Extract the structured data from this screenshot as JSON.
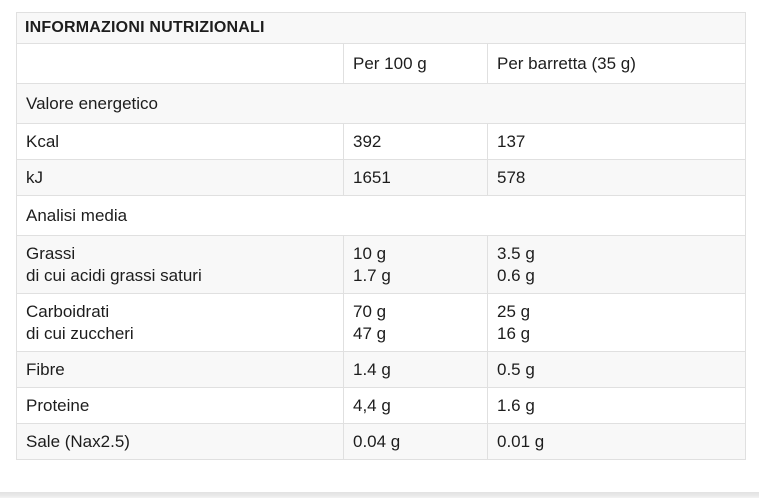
{
  "colors": {
    "stripe": "#f8f8f8",
    "row_white": "#ffffff",
    "border": "#e0e0e0",
    "text": "#1d1d1d",
    "bottom_edge": "#e9e9e9"
  },
  "table": {
    "title": "INFORMAZIONI NUTRIZIONALI",
    "col_headers": [
      "Per 100 g",
      "Per barretta (35 g)"
    ],
    "rows": [
      {
        "type": "section",
        "label": "Valore energetico"
      },
      {
        "type": "data",
        "label": "Kcal",
        "per_100g": "392",
        "per_barretta": "137"
      },
      {
        "type": "data",
        "label": "kJ",
        "per_100g": "1651",
        "per_barretta": "578"
      },
      {
        "type": "section",
        "label": "Analisi media"
      },
      {
        "type": "data",
        "label": "Grassi\ndi cui acidi grassi saturi",
        "per_100g": "10 g\n1.7 g",
        "per_barretta": "3.5 g\n0.6 g"
      },
      {
        "type": "data",
        "label": "Carboidrati\ndi cui zuccheri",
        "per_100g": "70 g\n47 g",
        "per_barretta": "25 g\n16 g"
      },
      {
        "type": "data",
        "label": "Fibre",
        "per_100g": "1.4 g",
        "per_barretta": "0.5 g"
      },
      {
        "type": "data",
        "label": "Proteine",
        "per_100g": "4,4 g",
        "per_barretta": "1.6 g"
      },
      {
        "type": "data",
        "label": "Sale (Nax2.5)",
        "per_100g": "0.04 g",
        "per_barretta": "0.01 g"
      }
    ]
  },
  "chart_data": {
    "type": "table",
    "title": "INFORMAZIONI NUTRIZIONALI",
    "columns": [
      "",
      "Per 100 g",
      "Per barretta (35 g)"
    ],
    "rows": [
      [
        "Valore energetico",
        "",
        ""
      ],
      [
        "Kcal",
        "392",
        "137"
      ],
      [
        "kJ",
        "1651",
        "578"
      ],
      [
        "Analisi media",
        "",
        ""
      ],
      [
        "Grassi",
        "10 g",
        "3.5 g"
      ],
      [
        "di cui acidi grassi saturi",
        "1.7 g",
        "0.6 g"
      ],
      [
        "Carboidrati",
        "70 g",
        "25 g"
      ],
      [
        "di cui zuccheri",
        "47 g",
        "16 g"
      ],
      [
        "Fibre",
        "1.4 g",
        "0.5 g"
      ],
      [
        "Proteine",
        "4,4 g",
        "1.6 g"
      ],
      [
        "Sale (Nax2.5)",
        "0.04 g",
        "0.01 g"
      ]
    ],
    "layout": {
      "zebra_striping": true,
      "section_rows_span_all_columns": true,
      "title_row_bold": true
    }
  }
}
